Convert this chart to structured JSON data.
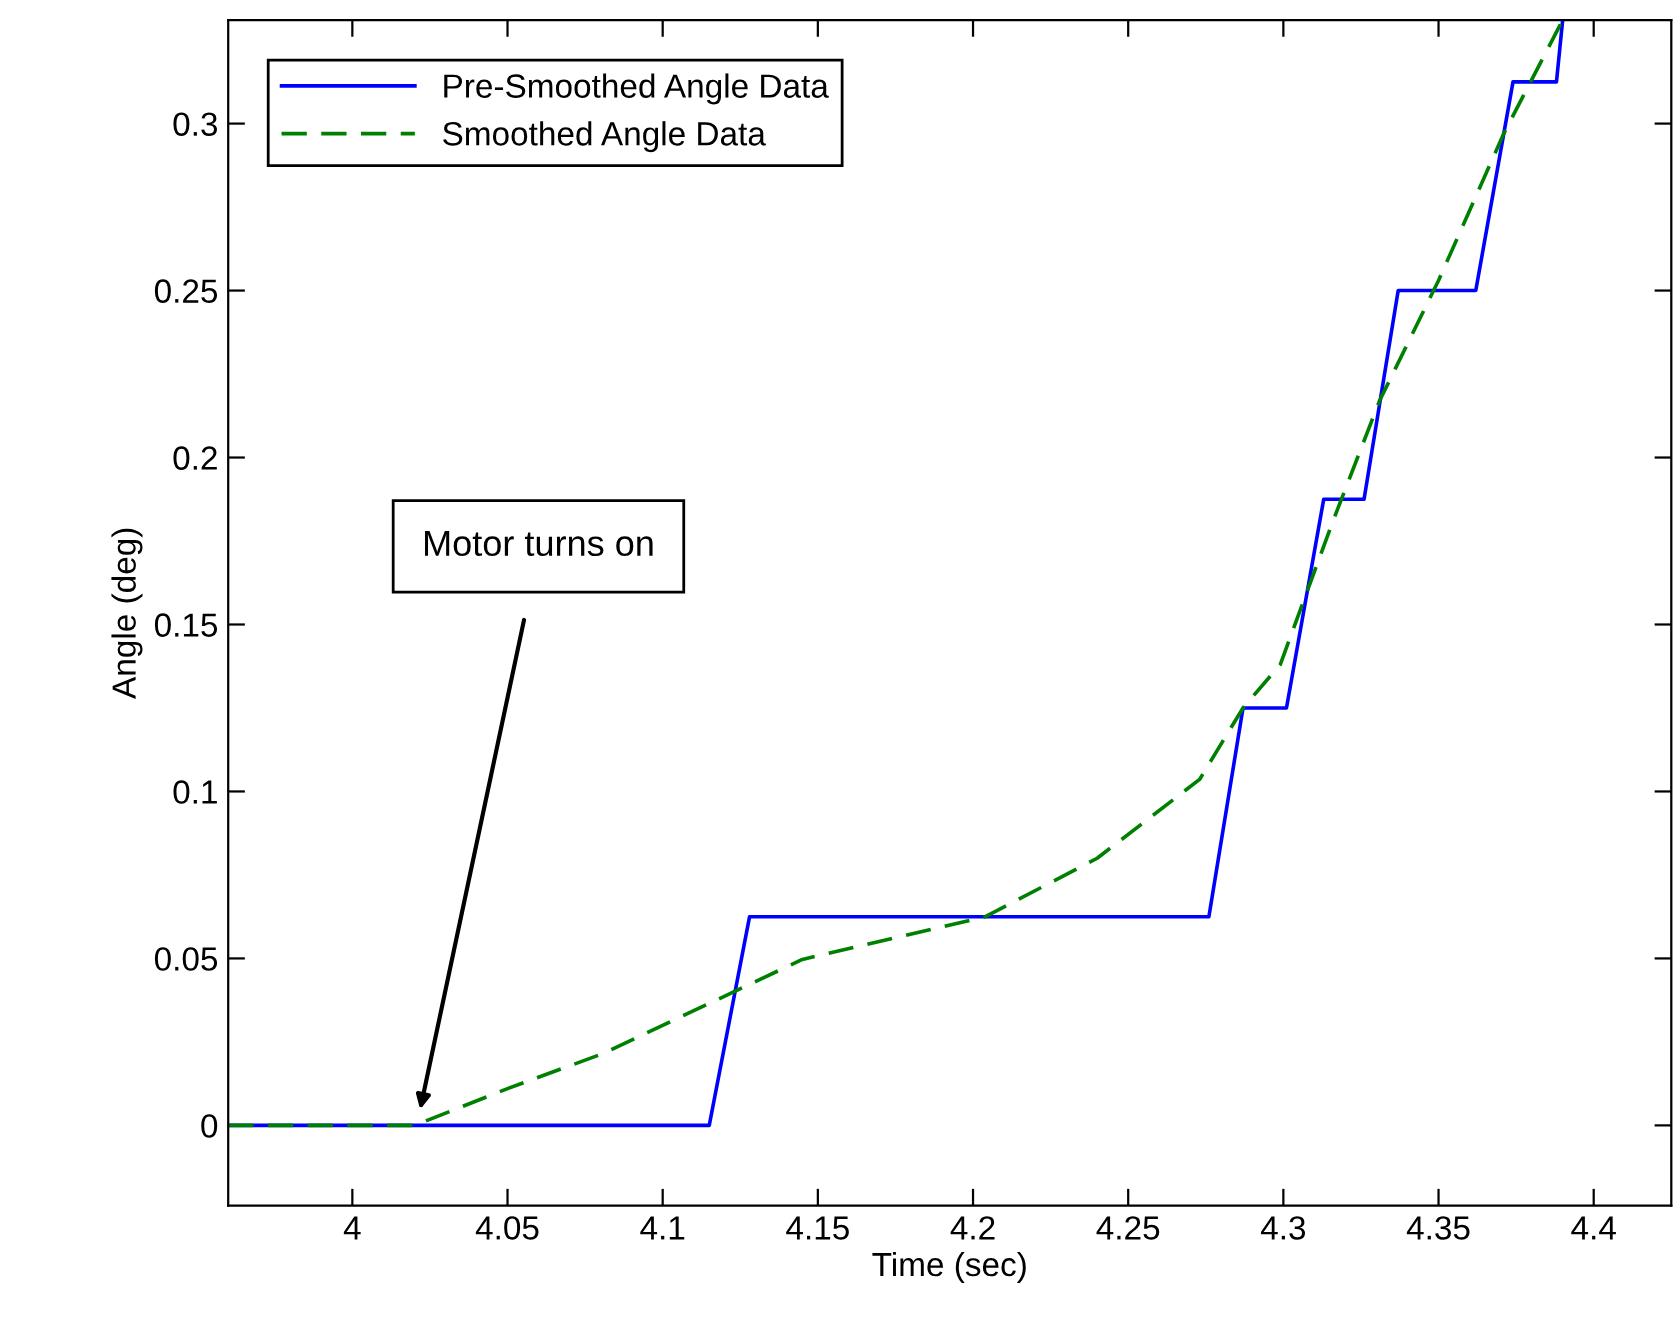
{
  "chart_data": {
    "type": "line",
    "xlabel": "Time (sec)",
    "ylabel": "Angle (deg)",
    "xlim": [
      3.96,
      4.425
    ],
    "ylim": [
      -0.024,
      0.331
    ],
    "xticks": [
      4,
      4.05,
      4.1,
      4.15,
      4.2,
      4.25,
      4.3,
      4.35,
      4.4
    ],
    "yticks": [
      0,
      0.05,
      0.1,
      0.15,
      0.2,
      0.25,
      0.3
    ],
    "grid": false,
    "legend": "top left",
    "marker": "none",
    "series": [
      {
        "name": "Pre-Smoothed Angle Data",
        "color": "#0000ff",
        "line_style": "solid",
        "x": [
          3.96,
          4.115,
          4.128,
          4.276,
          4.287,
          4.301,
          4.313,
          4.326,
          4.337,
          4.362,
          4.374,
          4.388,
          4.39
        ],
        "values": [
          0,
          0,
          0.0625,
          0.0625,
          0.125,
          0.125,
          0.1875,
          0.1875,
          0.25,
          0.25,
          0.3125,
          0.3125,
          0.331
        ]
      },
      {
        "name": "Smoothed Angle Data",
        "color": "#008000",
        "line_style": "dashed",
        "x": [
          3.96,
          4.02,
          4.05,
          4.081,
          4.145,
          4.204,
          4.24,
          4.273,
          4.287,
          4.299,
          4.316,
          4.331,
          4.35,
          4.371,
          4.39
        ],
        "values": [
          0,
          0,
          0.011,
          0.0216,
          0.0497,
          0.0625,
          0.08,
          0.1036,
          0.125,
          0.138,
          0.181,
          0.217,
          0.253,
          0.297,
          0.331
        ]
      }
    ],
    "annotations": [
      "Motor turns on"
    ]
  }
}
